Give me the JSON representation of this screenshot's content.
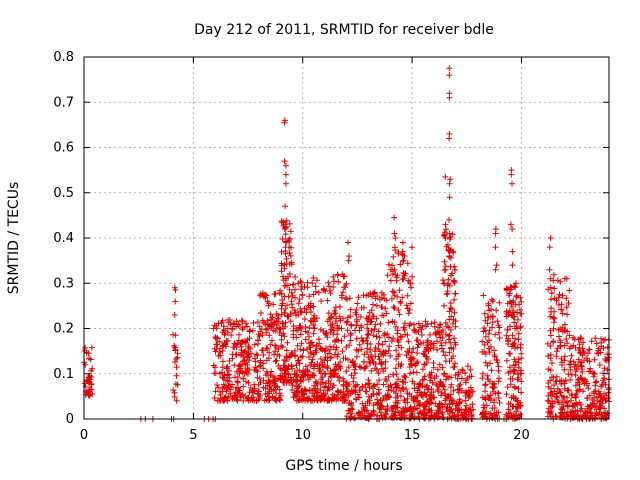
{
  "chart_data": {
    "type": "scatter",
    "title": "Day 212 of 2011, SRMTID for receiver bdle",
    "xlabel": "GPS time / hours",
    "ylabel": "SRMTID / TECUs",
    "xlim": [
      0,
      24
    ],
    "ylim": [
      0,
      0.8
    ],
    "xticks": [
      0,
      5,
      10,
      15,
      20
    ],
    "yticks": [
      0,
      0.1,
      0.2,
      0.3,
      0.4,
      0.5,
      0.6,
      0.7,
      0.8
    ],
    "xtick_labels": [
      "0",
      "5",
      "10",
      "15",
      "20"
    ],
    "ytick_labels": [
      "0",
      "0.1",
      "0.2",
      "0.3",
      "0.4",
      "0.5",
      "0.6",
      "0.7",
      "0.8"
    ],
    "grid": true,
    "marker": "+",
    "marker_color": "#e00000",
    "series": [
      {
        "name": "SRMTID",
        "clusters": [
          {
            "x_range": [
              0.0,
              0.4
            ],
            "y_range": [
              0.05,
              0.16
            ],
            "count": 40
          },
          {
            "x_range": [
              4.05,
              4.3
            ],
            "y_range": [
              0.04,
              0.29
            ],
            "count": 18
          },
          {
            "x_range": [
              5.9,
              8.0
            ],
            "y_range": [
              0.04,
              0.22
            ],
            "count": 260
          },
          {
            "x_range": [
              8.0,
              9.0
            ],
            "y_range": [
              0.04,
              0.29
            ],
            "count": 140
          },
          {
            "x_range": [
              9.0,
              9.5
            ],
            "y_range": [
              0.08,
              0.44
            ],
            "count": 120
          },
          {
            "x_range": [
              9.5,
              12.0
            ],
            "y_range": [
              0.04,
              0.32
            ],
            "count": 420
          },
          {
            "x_range": [
              12.0,
              13.8
            ],
            "y_range": [
              0.0,
              0.28
            ],
            "count": 280
          },
          {
            "x_range": [
              13.8,
              15.0
            ],
            "y_range": [
              0.0,
              0.38
            ],
            "count": 210
          },
          {
            "x_range": [
              15.0,
              16.4
            ],
            "y_range": [
              0.0,
              0.22
            ],
            "count": 220
          },
          {
            "x_range": [
              16.4,
              17.0
            ],
            "y_range": [
              0.0,
              0.42
            ],
            "count": 130
          },
          {
            "x_range": [
              17.0,
              17.8
            ],
            "y_range": [
              0.0,
              0.12
            ],
            "count": 80
          },
          {
            "x_range": [
              18.2,
              19.0
            ],
            "y_range": [
              0.0,
              0.28
            ],
            "count": 120
          },
          {
            "x_range": [
              19.3,
              20.0
            ],
            "y_range": [
              0.0,
              0.3
            ],
            "count": 140
          },
          {
            "x_range": [
              21.2,
              22.2
            ],
            "y_range": [
              0.0,
              0.32
            ],
            "count": 160
          },
          {
            "x_range": [
              22.2,
              24.0
            ],
            "y_range": [
              0.0,
              0.18
            ],
            "count": 260
          }
        ],
        "zero_points": [
          2.6,
          2.8,
          3.15,
          4.0,
          4.1,
          5.5,
          5.7,
          5.9,
          6.0,
          13.4,
          13.5,
          17.5,
          17.7,
          19.2,
          19.3
        ],
        "spikes": [
          {
            "x": 9.2,
            "values": [
              0.66,
              0.655,
              0.57,
              0.56,
              0.54,
              0.52,
              0.47,
              0.43,
              0.42,
              0.38
            ]
          },
          {
            "x": 14.2,
            "values": [
              0.445,
              0.41,
              0.4,
              0.33,
              0.28
            ]
          },
          {
            "x": 14.6,
            "values": [
              0.39,
              0.37,
              0.35,
              0.31
            ]
          },
          {
            "x": 16.7,
            "values": [
              0.775,
              0.76,
              0.72,
              0.71,
              0.63,
              0.62,
              0.53,
              0.52,
              0.49,
              0.44,
              0.41,
              0.36
            ]
          },
          {
            "x": 16.5,
            "values": [
              0.535,
              0.43,
              0.4,
              0.33,
              0.3
            ]
          },
          {
            "x": 18.85,
            "values": [
              0.42,
              0.41,
              0.38,
              0.34,
              0.33
            ]
          },
          {
            "x": 19.55,
            "values": [
              0.55,
              0.54,
              0.52,
              0.43,
              0.42,
              0.37,
              0.34
            ]
          },
          {
            "x": 21.3,
            "values": [
              0.4,
              0.38,
              0.33,
              0.31
            ]
          },
          {
            "x": 12.1,
            "values": [
              0.39,
              0.36,
              0.35
            ]
          },
          {
            "x": 4.15,
            "values": [
              0.29,
              0.285,
              0.26,
              0.23
            ]
          }
        ]
      }
    ]
  }
}
